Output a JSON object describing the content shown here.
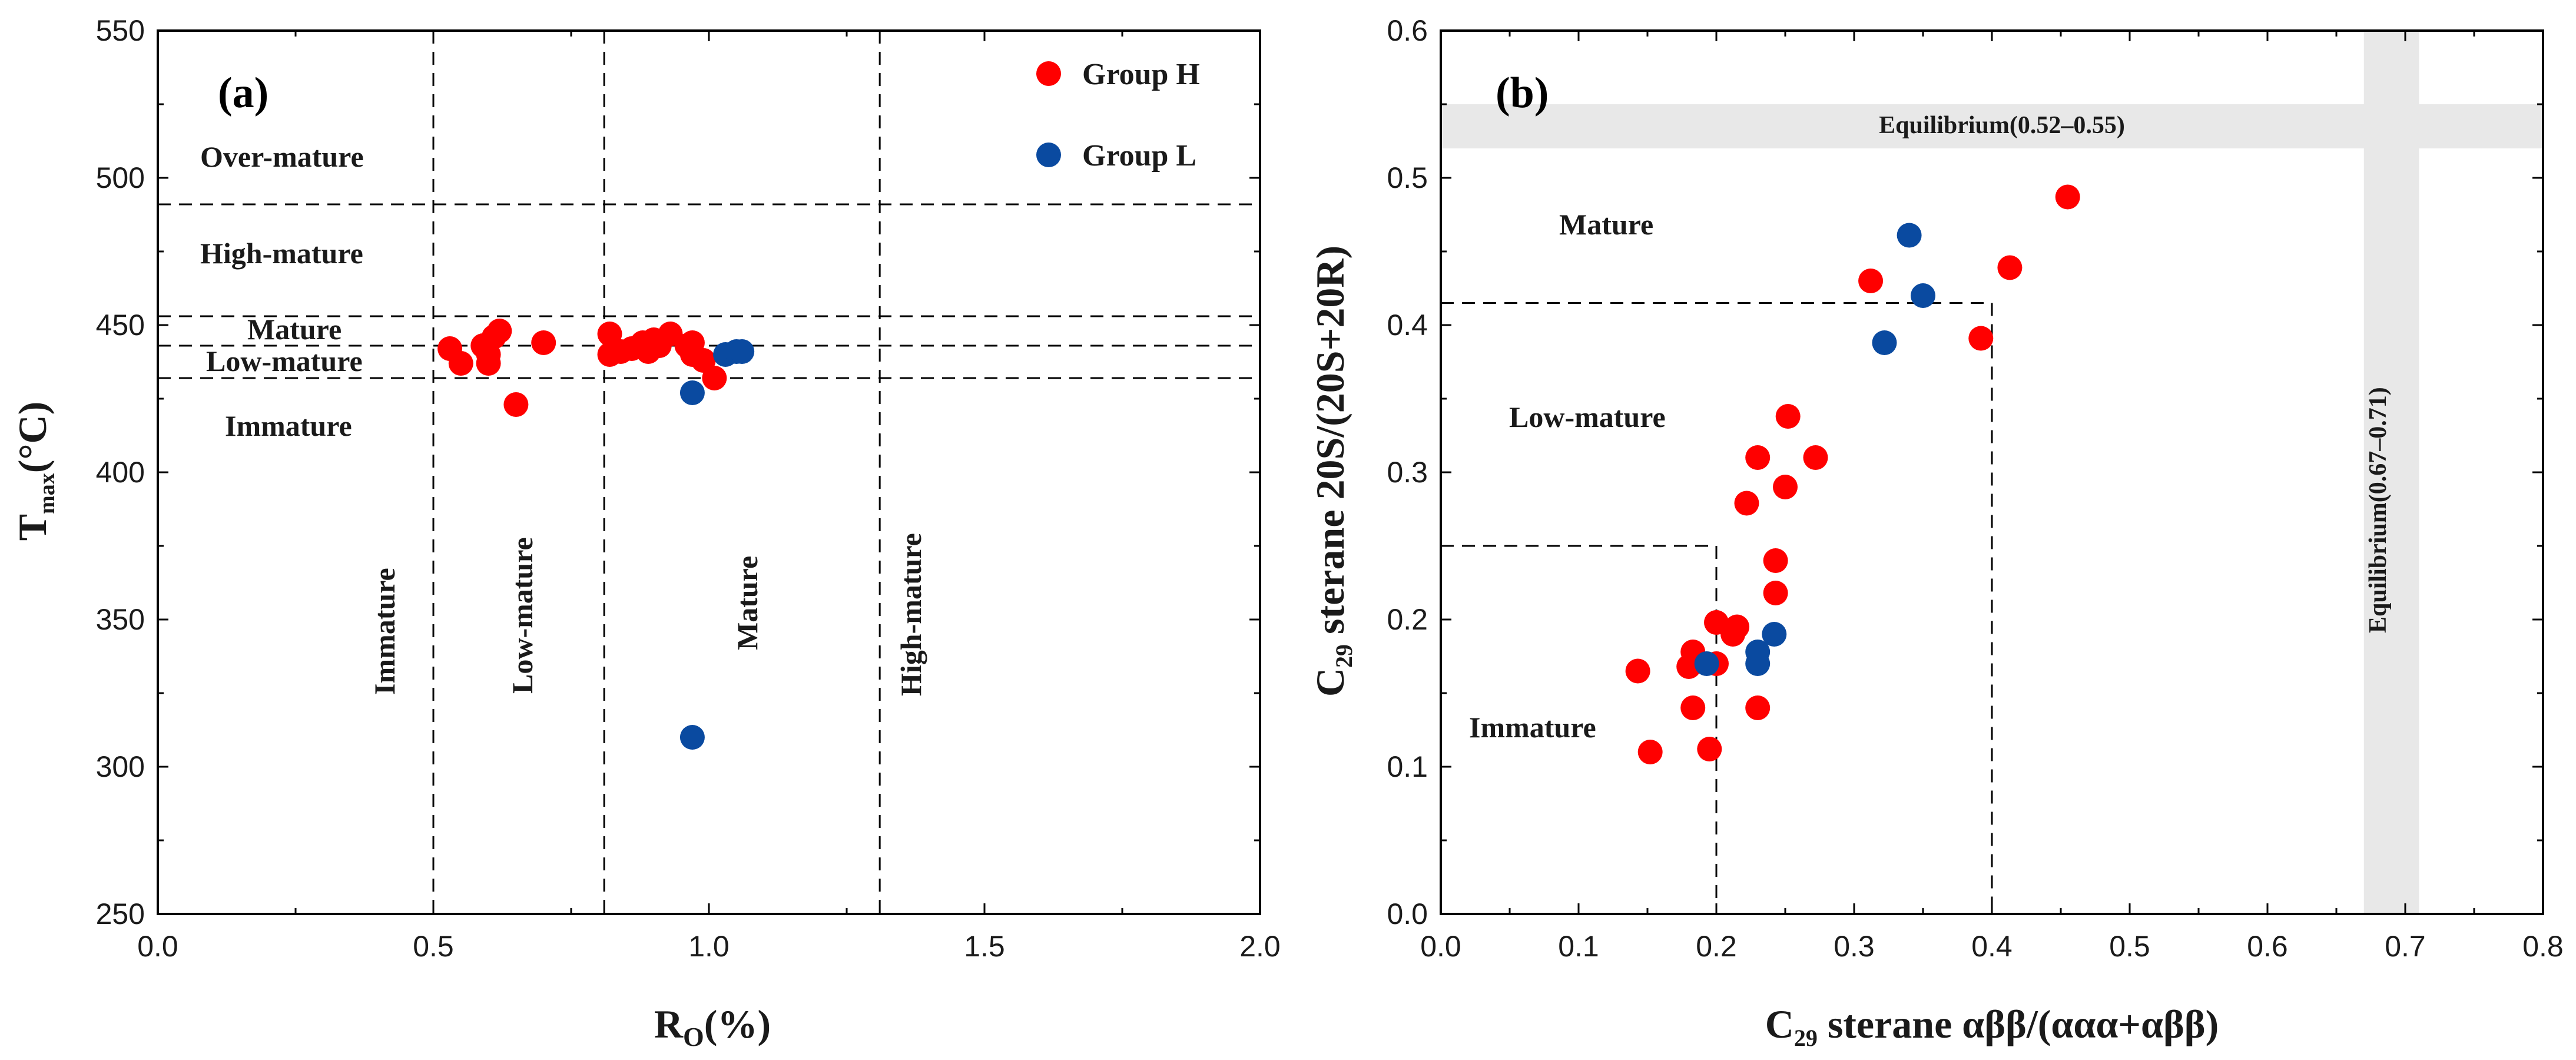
{
  "chart_data": [
    {
      "type": "scatter",
      "panel_label": "(a)",
      "xlabel": "R",
      "xlabel_sub": "O",
      "xlabel_suffix": "(%)",
      "ylabel": "T",
      "ylabel_sub": "max",
      "ylabel_suffix": "(°C)",
      "xlim": [
        0.0,
        2.0
      ],
      "ylim": [
        250,
        550
      ],
      "xticks": [
        0.0,
        0.5,
        1.0,
        1.5,
        2.0
      ],
      "xtick_labels": [
        "0.0",
        "0.5",
        "1.0",
        "1.5",
        "2.0"
      ],
      "yticks": [
        250,
        300,
        350,
        400,
        450,
        500,
        550
      ],
      "ytick_labels": [
        "250",
        "300",
        "350",
        "400",
        "450",
        "500",
        "550"
      ],
      "legend": [
        "Group H",
        "Group L"
      ],
      "legend_position": "top-right",
      "ref_lines_x": [
        0.5,
        0.81,
        1.31
      ],
      "ref_lines_y": [
        432,
        443,
        453,
        491
      ],
      "zone_labels_horizontal": [
        "Over-mature",
        "High-mature",
        "Mature",
        "Low-mature",
        "Immature"
      ],
      "zone_labels_vertical": [
        "Immature",
        "Low-mature",
        "Mature",
        "High-mature"
      ],
      "series": [
        {
          "name": "Group H",
          "color": "#ff0000",
          "points": [
            [
              0.53,
              442
            ],
            [
              0.55,
              437
            ],
            [
              0.59,
              443
            ],
            [
              0.6,
              437
            ],
            [
              0.6,
              440
            ],
            [
              0.61,
              446
            ],
            [
              0.62,
              448
            ],
            [
              0.65,
              423
            ],
            [
              0.7,
              444
            ],
            [
              0.82,
              447
            ],
            [
              0.82,
              440
            ],
            [
              0.84,
              441
            ],
            [
              0.86,
              442
            ],
            [
              0.88,
              444
            ],
            [
              0.89,
              441
            ],
            [
              0.9,
              445
            ],
            [
              0.91,
              443
            ],
            [
              0.93,
              447
            ],
            [
              0.96,
              443
            ],
            [
              0.97,
              444
            ],
            [
              0.97,
              440
            ],
            [
              0.99,
              438
            ],
            [
              1.01,
              432
            ]
          ]
        },
        {
          "name": "Group L",
          "color": "#0a4aa0",
          "points": [
            [
              0.97,
              427
            ],
            [
              1.03,
              440
            ],
            [
              1.05,
              441
            ],
            [
              1.06,
              441
            ],
            [
              0.97,
              310
            ]
          ]
        }
      ]
    },
    {
      "type": "scatter",
      "panel_label": "(b)",
      "xlabel": "C",
      "xlabel_sub": "29",
      "xlabel_suffix": " sterane αββ/(ααα+αββ)",
      "ylabel": "C",
      "ylabel_sub": "29",
      "ylabel_suffix": " sterane 20S/(20S+20R)",
      "xlim": [
        0.0,
        0.8
      ],
      "ylim": [
        0.0,
        0.6
      ],
      "xticks": [
        0.0,
        0.1,
        0.2,
        0.3,
        0.4,
        0.5,
        0.6,
        0.7,
        0.8
      ],
      "xtick_labels": [
        "0.0",
        "0.1",
        "0.2",
        "0.3",
        "0.4",
        "0.5",
        "0.6",
        "0.7",
        "0.8"
      ],
      "yticks": [
        0.0,
        0.1,
        0.2,
        0.3,
        0.4,
        0.5,
        0.6
      ],
      "ytick_labels": [
        "0.0",
        "0.1",
        "0.2",
        "0.3",
        "0.4",
        "0.5",
        "0.6"
      ],
      "equilibrium_band_y": [
        0.52,
        0.55
      ],
      "equilibrium_band_x": [
        0.67,
        0.71
      ],
      "equilibrium_y_label": "Equilibrium(0.52–0.55)",
      "equilibrium_x_label": "Equilibrium(0.67–0.71)",
      "ref_boxes": [
        [
          0.2,
          0.25
        ],
        [
          0.4,
          0.415
        ]
      ],
      "zone_labels": [
        "Mature",
        "Low-mature",
        "Immature"
      ],
      "series": [
        {
          "name": "Group H",
          "color": "#ff0000",
          "points": [
            [
              0.455,
              0.487
            ],
            [
              0.413,
              0.439
            ],
            [
              0.312,
              0.43
            ],
            [
              0.392,
              0.391
            ],
            [
              0.252,
              0.338
            ],
            [
              0.23,
              0.31
            ],
            [
              0.272,
              0.31
            ],
            [
              0.222,
              0.279
            ],
            [
              0.25,
              0.29
            ],
            [
              0.243,
              0.24
            ],
            [
              0.243,
              0.218
            ],
            [
              0.2,
              0.198
            ],
            [
              0.215,
              0.195
            ],
            [
              0.212,
              0.19
            ],
            [
              0.143,
              0.165
            ],
            [
              0.183,
              0.178
            ],
            [
              0.18,
              0.168
            ],
            [
              0.2,
              0.17
            ],
            [
              0.183,
              0.14
            ],
            [
              0.23,
              0.14
            ],
            [
              0.152,
              0.11
            ],
            [
              0.195,
              0.112
            ]
          ]
        },
        {
          "name": "Group L",
          "color": "#0a4aa0",
          "points": [
            [
              0.34,
              0.461
            ],
            [
              0.35,
              0.42
            ],
            [
              0.322,
              0.388
            ],
            [
              0.242,
              0.19
            ],
            [
              0.23,
              0.178
            ],
            [
              0.23,
              0.17
            ],
            [
              0.193,
              0.17
            ]
          ]
        }
      ]
    }
  ]
}
